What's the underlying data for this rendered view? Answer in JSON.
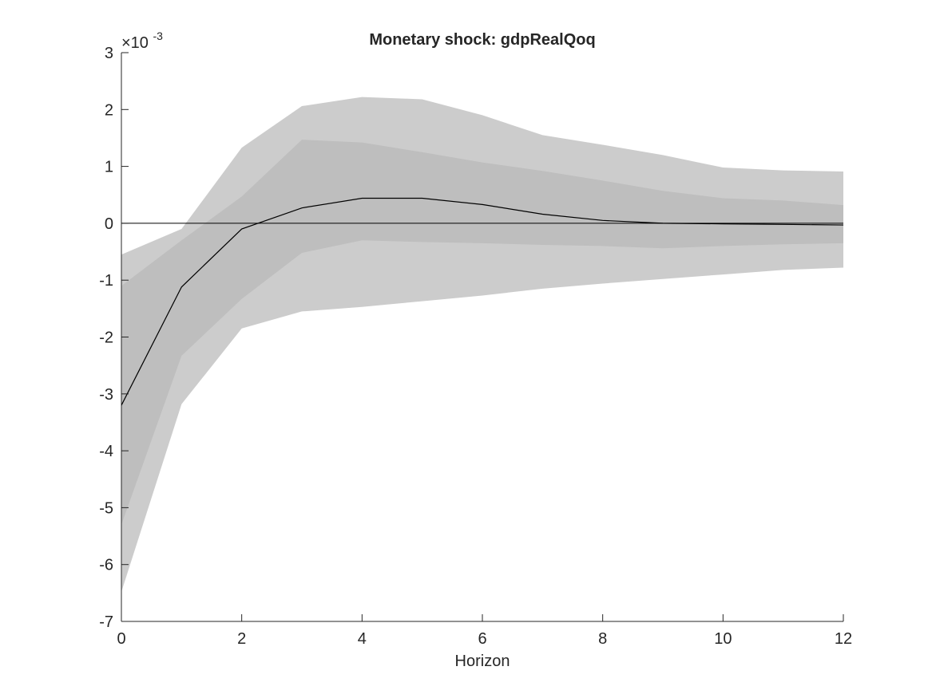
{
  "chart_data": {
    "type": "area",
    "title": "Monetary shock: gdpRealQoq",
    "xlabel": "Horizon",
    "ylabel": "",
    "exponent_label": "×10",
    "exponent_power": "-3",
    "xlim": [
      0,
      12
    ],
    "ylim": [
      -7,
      3
    ],
    "xticks": [
      "0",
      "2",
      "4",
      "6",
      "8",
      "10",
      "12"
    ],
    "yticks": [
      "3",
      "2",
      "1",
      "0",
      "-1",
      "-2",
      "-3",
      "-4",
      "-5",
      "-6",
      "-7"
    ],
    "grid": false,
    "x": [
      0,
      1,
      2,
      3,
      4,
      5,
      6,
      7,
      8,
      9,
      10,
      11,
      12
    ],
    "series": [
      {
        "role": "outer-band-upper",
        "values": [
          -0.55,
          -0.1,
          1.33,
          2.06,
          2.22,
          2.18,
          1.9,
          1.55,
          1.38,
          1.2,
          0.98,
          0.93,
          0.91
        ]
      },
      {
        "role": "outer-band-lower",
        "values": [
          -6.48,
          -3.18,
          -1.85,
          -1.55,
          -1.47,
          -1.37,
          -1.27,
          -1.15,
          -1.06,
          -0.98,
          -0.9,
          -0.82,
          -0.78
        ]
      },
      {
        "role": "inner-band-upper",
        "values": [
          -1.1,
          -0.3,
          0.47,
          1.47,
          1.42,
          1.25,
          1.07,
          0.92,
          0.75,
          0.57,
          0.44,
          0.4,
          0.32
        ]
      },
      {
        "role": "inner-band-lower",
        "values": [
          -5.3,
          -2.33,
          -1.33,
          -0.52,
          -0.3,
          -0.33,
          -0.35,
          -0.38,
          -0.4,
          -0.44,
          -0.4,
          -0.37,
          -0.35
        ]
      },
      {
        "role": "median",
        "values": [
          -3.2,
          -1.12,
          -0.1,
          0.27,
          0.44,
          0.44,
          0.33,
          0.16,
          0.05,
          0.0,
          -0.01,
          -0.02,
          -0.03
        ]
      }
    ],
    "reference_line": 0,
    "colors": {
      "outer_band": "#cccccc",
      "inner_band": "#bebebe",
      "median_line": "#000000",
      "zero_line": "#000000",
      "axis": "#262626"
    }
  }
}
